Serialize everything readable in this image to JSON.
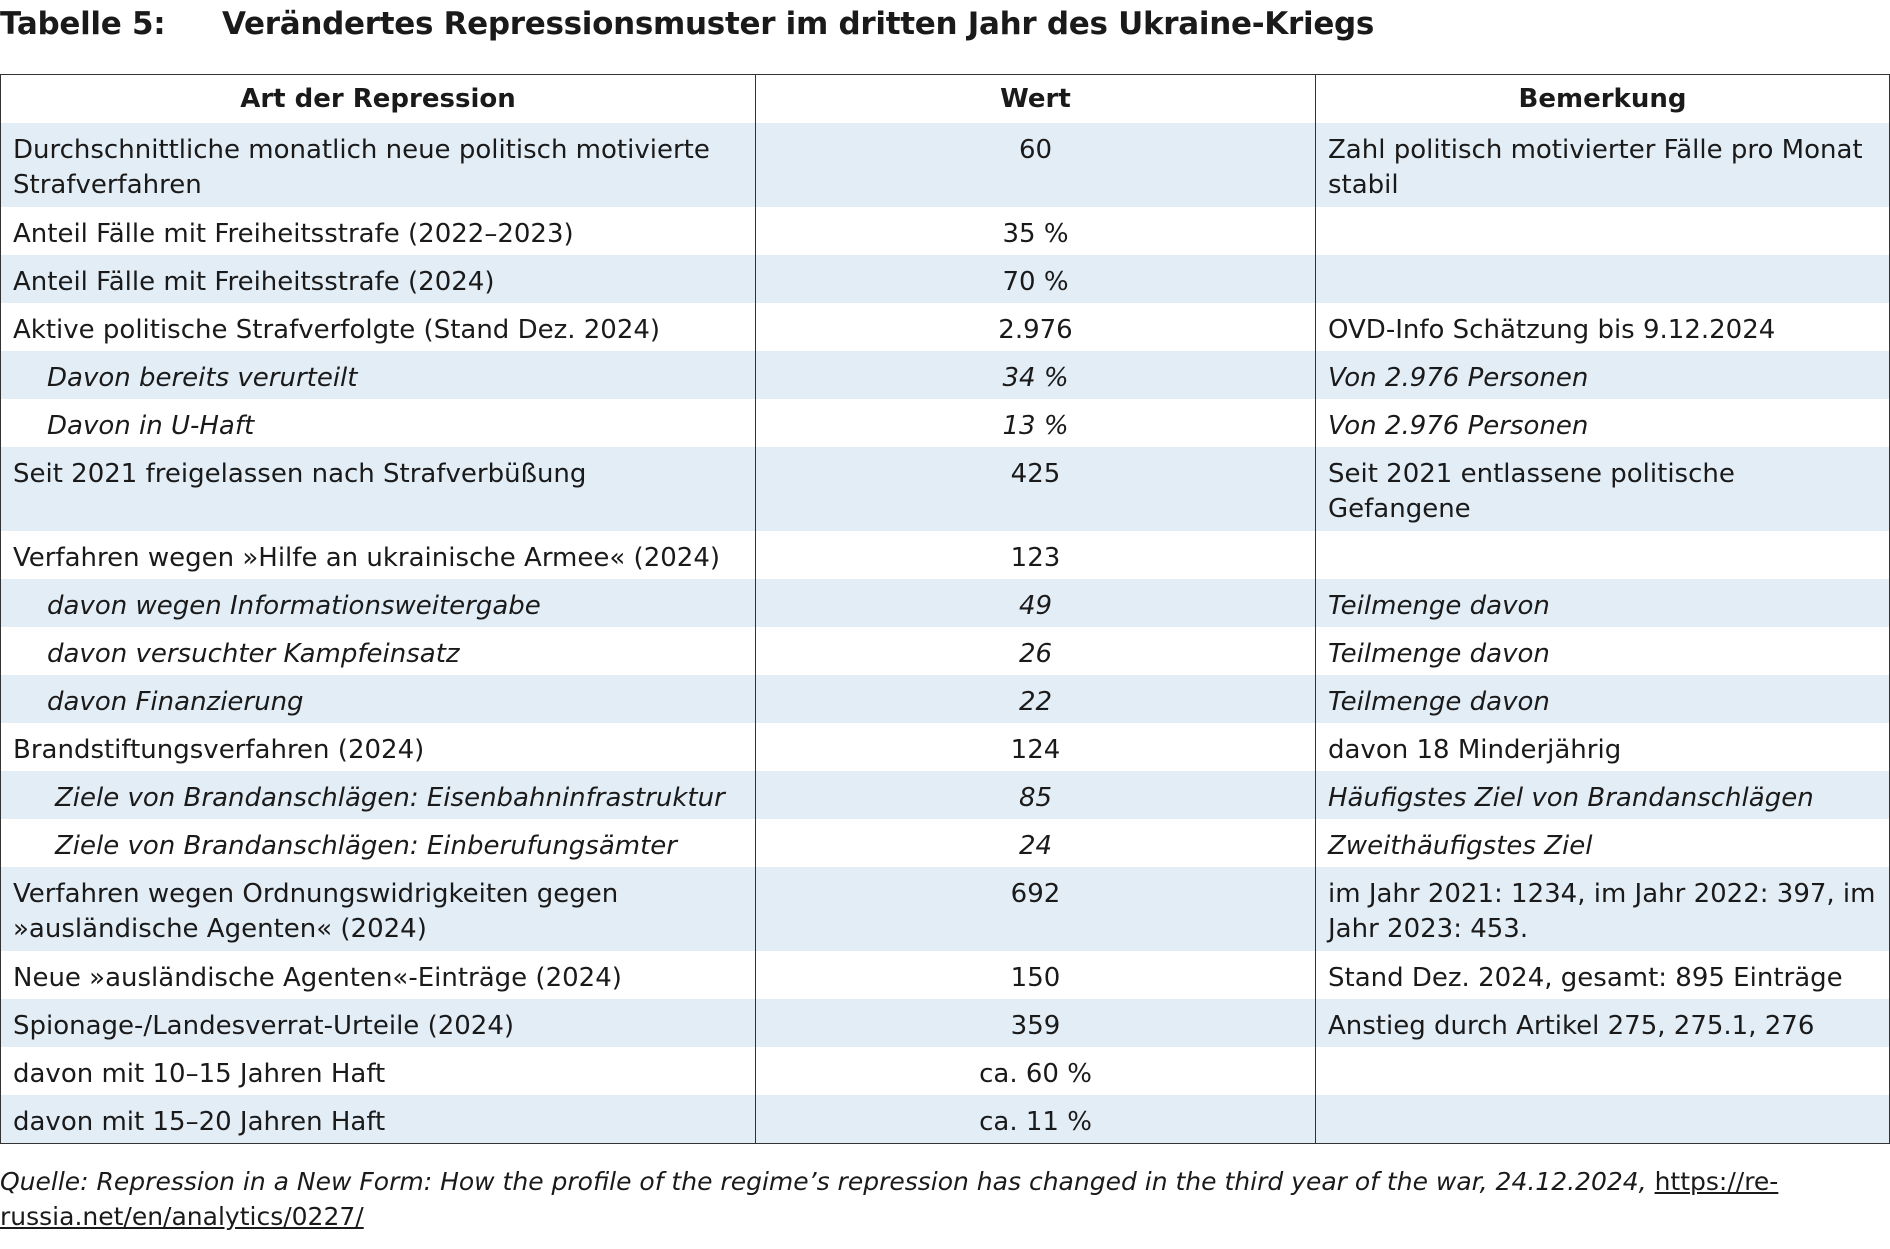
{
  "table_label": "Tabelle 5:",
  "table_title": "Verändertes Repressionsmuster im dritten Jahr des Ukraine-Kriegs",
  "columns": [
    "Art der Repression",
    "Wert",
    "Bemerkung"
  ],
  "rows": [
    {
      "art": "Durchschnittliche monatlich neue politisch motivierte Strafverfahren",
      "wert": "60",
      "bemerkung": "Zahl politisch motivierter Fälle pro Monat stabil",
      "sub": false,
      "shade": true,
      "tall": true
    },
    {
      "art": "Anteil Fälle mit Freiheitsstrafe (2022–2023)",
      "wert": "35 %",
      "bemerkung": "",
      "sub": false,
      "shade": false,
      "tall": false
    },
    {
      "art": "Anteil Fälle mit Freiheitsstrafe (2024)",
      "wert": "70 %",
      "bemerkung": "",
      "sub": false,
      "shade": true,
      "tall": false
    },
    {
      "art": "Aktive politische Strafverfolgte (Stand Dez. 2024)",
      "wert": "2.976",
      "bemerkung": "OVD-Info Schätzung bis 9.12.2024",
      "sub": false,
      "shade": false,
      "tall": false
    },
    {
      "art": "Davon bereits verurteilt",
      "wert": "34 %",
      "bemerkung": "Von 2.976 Personen",
      "sub": true,
      "shade": true,
      "tall": false
    },
    {
      "art": "Davon in U-Haft",
      "wert": "13 %",
      "bemerkung": "Von 2.976 Personen",
      "sub": true,
      "shade": false,
      "tall": false
    },
    {
      "art": "Seit 2021 freigelassen nach Strafverbüßung",
      "wert": "425",
      "bemerkung": "Seit 2021 entlassene politische Gefangene",
      "sub": false,
      "shade": true,
      "tall": true
    },
    {
      "art": "Verfahren wegen »Hilfe an ukrainische Armee« (2024)",
      "wert": "123",
      "bemerkung": "",
      "sub": false,
      "shade": false,
      "tall": false
    },
    {
      "art": "davon wegen Informationsweitergabe",
      "wert": "49",
      "bemerkung": "Teilmenge davon",
      "sub": true,
      "shade": true,
      "tall": false
    },
    {
      "art": "davon versuchter Kampfeinsatz",
      "wert": "26",
      "bemerkung": "Teilmenge davon",
      "sub": true,
      "shade": false,
      "tall": false
    },
    {
      "art": "davon Finanzierung",
      "wert": "22",
      "bemerkung": "Teilmenge davon",
      "sub": true,
      "shade": true,
      "tall": false
    },
    {
      "art": "Brandstiftungsverfahren (2024)",
      "wert": "124",
      "bemerkung": "davon 18 Minderjährig",
      "sub": false,
      "shade": false,
      "tall": false
    },
    {
      "art": "Ziele von Brandanschlägen: Eisenbahninfrastruktur",
      "wert": "85",
      "bemerkung": "Häufigstes Ziel von Brandanschlägen",
      "sub": true,
      "sub2": true,
      "shade": true,
      "tall": false
    },
    {
      "art": "Ziele von Brandanschlägen: Einberufungsämter",
      "wert": "24",
      "bemerkung": "Zweithäufigstes Ziel",
      "sub": true,
      "sub2": true,
      "shade": false,
      "tall": false
    },
    {
      "art": "Verfahren wegen Ordnungswidrigkeiten gegen »ausländische Agenten« (2024)",
      "wert": "692",
      "bemerkung": "im Jahr 2021: 1234, im Jahr 2022: 397, im Jahr 2023: 453.",
      "sub": false,
      "shade": true,
      "tall": true
    },
    {
      "art": "Neue »ausländische Agenten«-Einträge (2024)",
      "wert": "150",
      "bemerkung": "Stand Dez. 2024, gesamt: 895 Einträge",
      "sub": false,
      "shade": false,
      "tall": false
    },
    {
      "art": "Spionage-/Landesverrat-Urteile (2024)",
      "wert": "359",
      "bemerkung": "Anstieg durch Artikel 275, 275.1, 276",
      "sub": false,
      "shade": true,
      "tall": false
    },
    {
      "art": "davon mit 10–15 Jahren Haft",
      "wert": "ca. 60 %",
      "bemerkung": "",
      "sub": false,
      "shade": false,
      "tall": false
    },
    {
      "art": "davon mit 15–20 Jahren Haft",
      "wert": "ca. 11 %",
      "bemerkung": "",
      "sub": false,
      "shade": true,
      "tall": false
    }
  ],
  "source": {
    "text": "Quelle: Repression in a New Form: How the profile of the regime’s repression has changed in the third year of the war, 24.12.2024, ",
    "link": "https://re-russia.net/en/analytics/0227/"
  },
  "colors": {
    "row_shade": "#e3edf6",
    "border": "#333333",
    "text": "#1a1a1a"
  }
}
